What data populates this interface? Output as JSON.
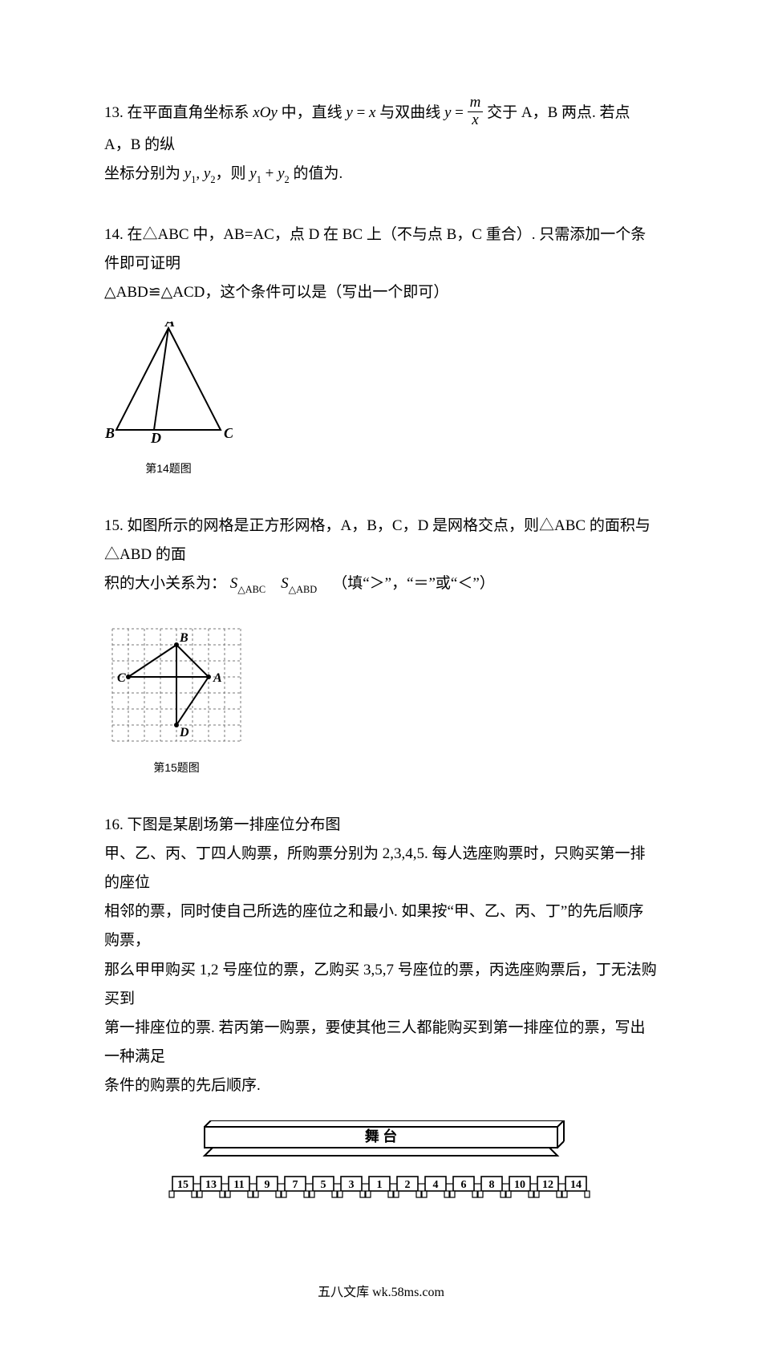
{
  "q13": {
    "num": "13.",
    "t1": "在平面直角坐标系 ",
    "xoy": "xOy",
    "t2": " 中，直线 ",
    "eq1_l": "y",
    "eq1_eq": " = ",
    "eq1_r": "x",
    "t3": " 与双曲线 ",
    "eq2_l": "y",
    "eq2_eq": " = ",
    "frac_num": "m",
    "frac_den": "x",
    "t4": " 交于 A，B 两点. 若点 A，B 的纵",
    "line2a": "坐标分别为 ",
    "y1": "y",
    "y1s": "1",
    "comma": ", ",
    "y2": "y",
    "y2s": "2",
    "line2b": "，则 ",
    "y3": "y",
    "y3s": "1",
    "plus": " + ",
    "y4": "y",
    "y4s": "2",
    "line2c": " 的值为."
  },
  "q14": {
    "num": "14.",
    "t1": "在△ABC 中，AB=AC，点 D 在 BC 上（不与点 B，C 重合）. 只需添加一个条件即可证明",
    "t2": "△ABD≌△ACD，这个条件可以是（写出一个即可）",
    "caption": "第14题图",
    "labels": {
      "A": "A",
      "B": "B",
      "C": "C",
      "D": "D"
    }
  },
  "q15": {
    "num": "15.",
    "t1": "如图所示的网格是正方形网格，A，B，C，D 是网格交点，则△ABC 的面积与△ABD 的面",
    "t2": "积的大小关系为：",
    "S1": "S",
    "S1sub": "△ABC",
    "S2": "S",
    "S2sub": "△ABD",
    "t3": "（填“＞”，“＝”或“＜”）",
    "caption": "第15题图",
    "labels": {
      "A": "A",
      "B": "B",
      "C": "C",
      "D": "D"
    }
  },
  "q16": {
    "num": "16.",
    "t1": "下图是某剧场第一排座位分布图",
    "p1": "甲、乙、丙、丁四人购票，所购票分别为 2,3,4,5. 每人选座购票时，只购买第一排的座位",
    "p2": "相邻的票，同时使自己所选的座位之和最小. 如果按“甲、乙、丙、丁”的先后顺序购票，",
    "p3": "那么甲甲购买 1,2 号座位的票，乙购买 3,5,7 号座位的票，丙选座购票后，丁无法购买到",
    "p4": "第一排座位的票. 若丙第一购票，要使其他三人都能购买到第一排座位的票，写出一种满足",
    "p5": "条件的购票的先后顺序.",
    "stage": "舞    台",
    "seats": [
      "15",
      "13",
      "11",
      "9",
      "7",
      "5",
      "3",
      "1",
      "2",
      "4",
      "6",
      "8",
      "10",
      "12",
      "14"
    ]
  },
  "footer": "五八文库 wk.58ms.com",
  "style": {
    "grid_color": "#888888",
    "line_color": "#000000",
    "text_color": "#000000",
    "bg": "#ffffff"
  }
}
